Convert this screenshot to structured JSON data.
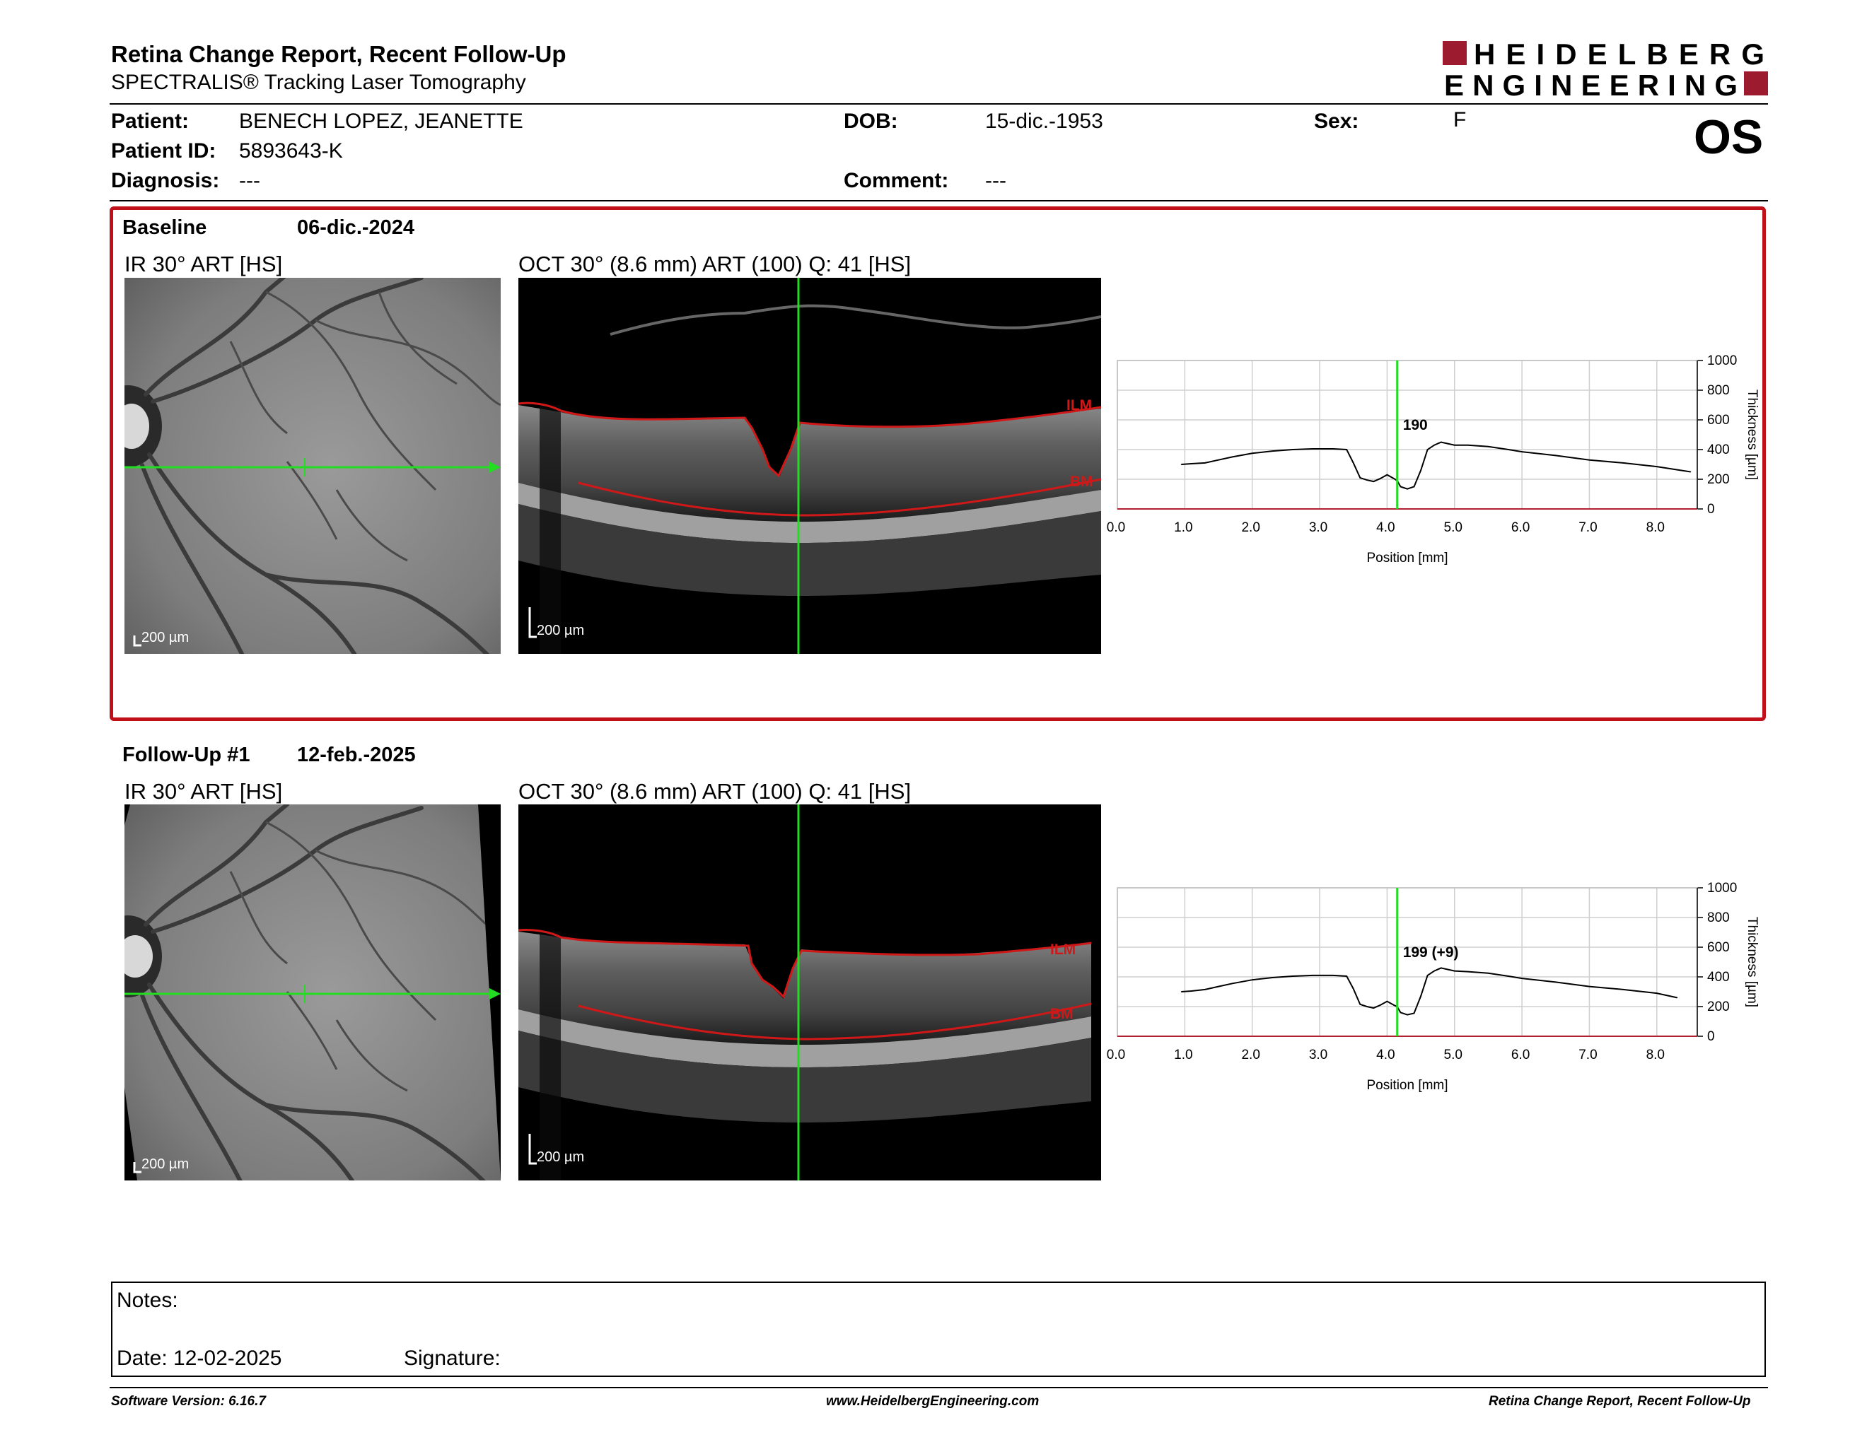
{
  "report": {
    "title": "Retina Change Report, Recent Follow-Up",
    "subtitle": "SPECTRALIS® Tracking Laser Tomography",
    "logo_line1": "HEIDELBERG",
    "logo_line2": "ENGINEERING",
    "eye": "OS"
  },
  "patient": {
    "patient_label": "Patient:",
    "patient_value": "BENECH LOPEZ, JEANETTE",
    "id_label": "Patient ID:",
    "id_value": "5893643-K",
    "diagnosis_label": "Diagnosis:",
    "diagnosis_value": "---",
    "dob_label": "DOB:",
    "dob_value": "15-dic.-1953",
    "comment_label": "Comment:",
    "comment_value": "---",
    "sex_label": "Sex:",
    "sex_value": "F"
  },
  "baseline": {
    "label": "Baseline",
    "date": "06-dic.-2024",
    "ir_caption": "IR 30° ART [HS]",
    "oct_caption": "OCT 30° (8.6 mm) ART (100) Q: 41 [HS]",
    "ir_scale": "200 µm",
    "oct_scale": "200 µm",
    "ilm_label": "ILM",
    "bm_label": "BM",
    "cursor_value_label": "190"
  },
  "followup": {
    "label": "Follow-Up #1",
    "date": "12-feb.-2025",
    "ir_caption": "IR 30° ART [HS]",
    "oct_caption": "OCT 30° (8.6 mm) ART (100) Q: 41 [HS]",
    "ir_scale": "200 µm",
    "oct_scale": "200 µm",
    "ilm_label": "ILM",
    "bm_label": "BM",
    "cursor_value_label": "199 (+9)"
  },
  "chart_data": [
    {
      "type": "line",
      "xlabel": "Position [mm]",
      "ylabel": "Thickness [µm]",
      "xlim": [
        0,
        8.6
      ],
      "ylim": [
        0,
        1000
      ],
      "x_ticks": [
        "0.0",
        "1.0",
        "2.0",
        "3.0",
        "4.0",
        "5.0",
        "6.0",
        "7.0",
        "8.0"
      ],
      "y_ticks": [
        "0",
        "200",
        "400",
        "600",
        "800",
        "1000"
      ],
      "grid": true,
      "cursor_x": 4.15,
      "x": [
        0.95,
        1.1,
        1.3,
        1.5,
        1.7,
        2.0,
        2.3,
        2.6,
        2.9,
        3.2,
        3.4,
        3.5,
        3.6,
        3.7,
        3.8,
        3.9,
        4.0,
        4.1,
        4.15,
        4.2,
        4.3,
        4.4,
        4.5,
        4.6,
        4.7,
        4.8,
        4.9,
        5.0,
        5.2,
        5.5,
        5.8,
        6.0,
        6.5,
        7.0,
        7.5,
        8.0,
        8.5
      ],
      "y": [
        300,
        305,
        310,
        330,
        350,
        375,
        390,
        400,
        405,
        405,
        400,
        310,
        210,
        195,
        185,
        205,
        230,
        205,
        190,
        150,
        135,
        150,
        260,
        400,
        430,
        450,
        440,
        430,
        430,
        420,
        400,
        385,
        360,
        330,
        310,
        285,
        250
      ]
    },
    {
      "type": "line",
      "xlabel": "Position [mm]",
      "ylabel": "Thickness [µm]",
      "xlim": [
        0,
        8.6
      ],
      "ylim": [
        0,
        1000
      ],
      "x_ticks": [
        "0.0",
        "1.0",
        "2.0",
        "3.0",
        "4.0",
        "5.0",
        "6.0",
        "7.0",
        "8.0"
      ],
      "y_ticks": [
        "0",
        "200",
        "400",
        "600",
        "800",
        "1000"
      ],
      "grid": true,
      "cursor_x": 4.15,
      "x": [
        0.95,
        1.1,
        1.3,
        1.5,
        1.7,
        2.0,
        2.3,
        2.6,
        2.9,
        3.2,
        3.4,
        3.5,
        3.6,
        3.7,
        3.8,
        3.9,
        4.0,
        4.1,
        4.15,
        4.2,
        4.3,
        4.4,
        4.5,
        4.6,
        4.7,
        4.8,
        4.9,
        5.0,
        5.2,
        5.5,
        5.8,
        6.0,
        6.5,
        7.0,
        7.5,
        8.0,
        8.3
      ],
      "y": [
        300,
        305,
        315,
        335,
        355,
        380,
        395,
        405,
        410,
        410,
        405,
        320,
        215,
        200,
        190,
        210,
        235,
        210,
        199,
        160,
        145,
        155,
        270,
        410,
        440,
        460,
        450,
        440,
        435,
        425,
        405,
        390,
        365,
        335,
        315,
        290,
        260
      ]
    }
  ],
  "notes": {
    "label": "Notes:",
    "date_label": "Date: 12-02-2025",
    "signature_label": "Signature:"
  },
  "footer": {
    "left": "Software Version: 6.16.7",
    "center": "www.HeidelbergEngineering.com",
    "right": "Retina Change Report, Recent Follow-Up"
  },
  "colors": {
    "brand_red": "#9c1b2e",
    "segmentation_red": "#d01818",
    "cursor_green": "#22dd22",
    "frame_red": "#c0101a"
  }
}
